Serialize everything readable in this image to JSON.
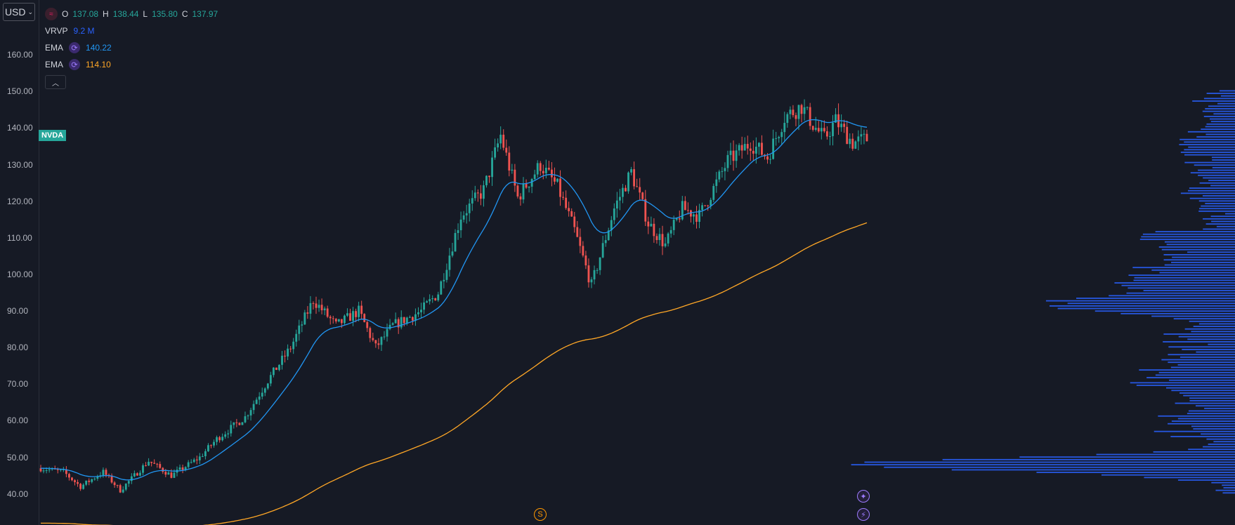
{
  "currency": "USD",
  "symbol": "NVDA",
  "ohlc": {
    "o_label": "O",
    "o": "137.08",
    "h_label": "H",
    "h": "138.44",
    "l_label": "L",
    "l": "135.80",
    "c_label": "C",
    "c": "137.97"
  },
  "indicators": [
    {
      "name": "VRVP",
      "value": "9.2 M",
      "color": "#2962ff"
    },
    {
      "name": "EMA",
      "value": "140.22",
      "color": "#2196f3"
    },
    {
      "name": "EMA",
      "value": "114.10",
      "color": "#ffa726"
    }
  ],
  "icons": {
    "symbol": "exchange-logo-icon",
    "cycle": "cycle-icon",
    "collapse": "chevron-up-icon",
    "split": "S",
    "star": "sparkle-icon",
    "bolt": "bolt-icon"
  },
  "colors": {
    "up": "#26a69a",
    "down": "#ef5350",
    "ema_fast": "#2196f3",
    "ema_slow": "#ffa726",
    "volume_profile": "#2962ff",
    "background": "#161a25"
  },
  "chart_data": {
    "type": "candlestick",
    "ylim": [
      31.5,
      175
    ],
    "y_ticks": [
      "160.00",
      "150.00",
      "140.00",
      "130.00",
      "120.00",
      "110.00",
      "100.00",
      "90.00",
      "80.00",
      "70.00",
      "60.00",
      "50.00",
      "40.00"
    ],
    "price_path": [
      [
        0,
        47
      ],
      [
        8,
        46
      ],
      [
        14,
        42
      ],
      [
        22,
        46
      ],
      [
        28,
        41
      ],
      [
        38,
        49
      ],
      [
        46,
        45
      ],
      [
        56,
        50
      ],
      [
        62,
        55
      ],
      [
        72,
        61
      ],
      [
        80,
        71
      ],
      [
        88,
        80
      ],
      [
        96,
        93
      ],
      [
        104,
        86
      ],
      [
        112,
        90
      ],
      [
        118,
        80
      ],
      [
        124,
        86
      ],
      [
        134,
        90
      ],
      [
        140,
        95
      ],
      [
        148,
        116
      ],
      [
        156,
        123
      ],
      [
        162,
        138
      ],
      [
        168,
        121
      ],
      [
        176,
        130
      ],
      [
        182,
        124
      ],
      [
        188,
        112
      ],
      [
        194,
        97
      ],
      [
        202,
        118
      ],
      [
        208,
        128
      ],
      [
        214,
        114
      ],
      [
        220,
        108
      ],
      [
        226,
        118
      ],
      [
        232,
        116
      ],
      [
        236,
        122
      ],
      [
        242,
        131
      ],
      [
        250,
        136
      ],
      [
        256,
        132
      ],
      [
        262,
        143
      ],
      [
        268,
        146
      ],
      [
        272,
        141
      ],
      [
        276,
        137
      ],
      [
        280,
        142
      ],
      [
        286,
        136
      ],
      [
        291,
        137
      ]
    ],
    "ema_fast_end": 140.22,
    "ema_slow_end": 114.1,
    "volume_profile_peaks": [
      {
        "price": 91,
        "level": "high"
      },
      {
        "price": 48,
        "level": "max"
      }
    ]
  }
}
